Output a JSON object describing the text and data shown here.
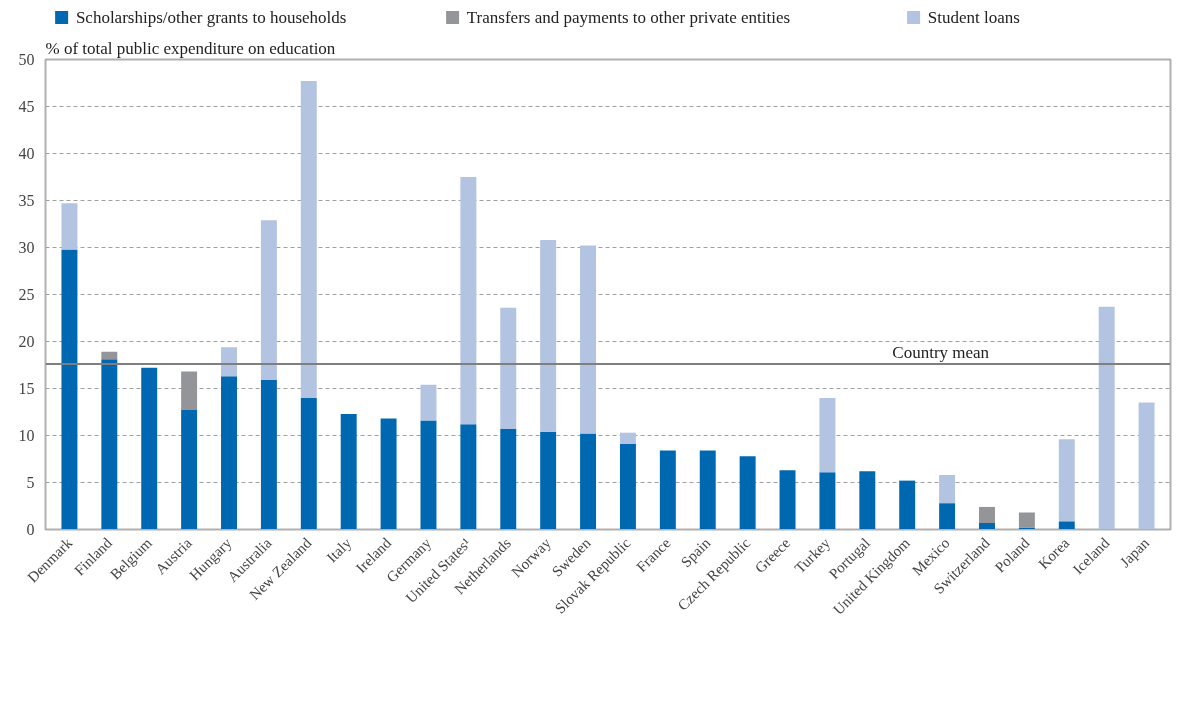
{
  "chart_data": {
    "type": "bar",
    "stacked": true,
    "ylabel": "% of total public expenditure on education",
    "categories": [
      "Denmark",
      "Finland",
      "Belgium",
      "Austria",
      "Hungary",
      "Australia",
      "New Zealand",
      "Italy",
      "Ireland",
      "Germany",
      "United States¹",
      "Netherlands",
      "Norway",
      "Sweden",
      "Slovak Republic",
      "France",
      "Spain",
      "Czech Republic",
      "Greece",
      "Turkey",
      "Portugal",
      "United Kingdom",
      "Mexico",
      "Switzerland",
      "Poland",
      "Korea",
      "Iceland",
      "Japan"
    ],
    "series": [
      {
        "name": "Scholarships/other grants to households",
        "color": "#0068b0",
        "values": [
          29.8,
          18.1,
          17.2,
          12.7,
          16.3,
          15.9,
          14.0,
          12.3,
          11.8,
          11.6,
          11.2,
          10.7,
          10.4,
          10.2,
          9.1,
          8.4,
          8.4,
          7.8,
          6.3,
          6.1,
          6.2,
          5.2,
          2.8,
          0.7,
          0.2,
          0.8,
          null,
          null
        ]
      },
      {
        "name": "Transfers and payments to other private entities",
        "color": "#939598",
        "values": [
          null,
          0.8,
          null,
          4.1,
          null,
          null,
          null,
          null,
          null,
          null,
          null,
          null,
          null,
          null,
          null,
          null,
          null,
          null,
          null,
          null,
          null,
          null,
          null,
          1.7,
          1.6,
          0.1,
          null,
          null
        ]
      },
      {
        "name": "Student loans",
        "color": "#b3c3e2",
        "values": [
          4.9,
          null,
          null,
          null,
          3.1,
          17.0,
          33.7,
          null,
          null,
          3.8,
          26.3,
          12.9,
          20.4,
          20.0,
          1.2,
          null,
          null,
          null,
          null,
          7.9,
          null,
          null,
          3.0,
          null,
          null,
          8.7,
          23.7,
          13.5
        ]
      }
    ],
    "ylim": [
      0,
      50
    ],
    "yticks": [
      0,
      5,
      10,
      15,
      20,
      25,
      30,
      35,
      40,
      45,
      50
    ],
    "grid": "y",
    "legend": "top",
    "ref_lines": [
      {
        "axis": "y",
        "value": 17.6,
        "label": "Country mean",
        "color": "#7f7f7f"
      }
    ]
  }
}
